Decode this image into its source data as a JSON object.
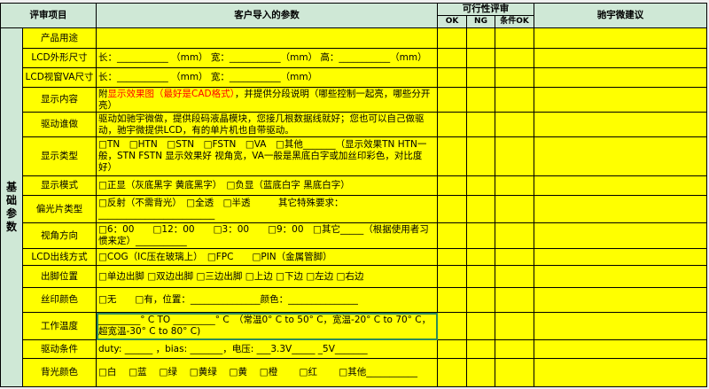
{
  "header": {
    "item": "评审项目",
    "params": "客户导入的参数",
    "feasibility": "可行性评审",
    "ok": "OK",
    "ng": "NG",
    "cond_ok": "条件OK",
    "suggestion": "驰宇微建议"
  },
  "group_label": "基础参数",
  "rows": [
    {
      "item": "产品用途",
      "param": ""
    },
    {
      "item": "LCD外形尺寸",
      "param": "长：___________ （mm） 宽：___________（mm） 高：___________（mm）"
    },
    {
      "item": "LCD视窗VA尺寸",
      "param": "长：___________ （mm） 宽：___________（mm）"
    },
    {
      "item": "显示内容",
      "param_prefix": "附",
      "param_red": "显示效果图（最好是CAD格式）",
      "param": "，并提供分段说明（哪些控制一起亮，哪些分开亮）"
    },
    {
      "item": "驱动谁做",
      "param": "驱动如驰宇微做，提供段码液晶模块，您接几根数据线就好；您也可以自己做驱动，驰宇微提供LCD，有的单片机也自带驱动。"
    },
    {
      "item": "显示类型",
      "param": "□TN　□HTN　□STN　□FSTN　□VA　□其他_______（显示效果TN HTN一般，STN FSTN 显示效果好 视角宽，VA一般是黑底白字或加丝印彩色，对比度好）"
    },
    {
      "item": "显示模式",
      "param": "□正显（灰底黑字 黄底黑字）　□负显（蓝底白字 黑底白字）"
    },
    {
      "item": "偏光片类型",
      "param": "□反射（不需背光）　□全透　□半透　　　其它特殊要求：_________________________"
    },
    {
      "item": "视角方向",
      "param": "□6：00　　□12：00　　□3：00　　□9：00　□其它_____（根据使用者习惯来定）___________"
    },
    {
      "item": "LCD出线方式",
      "param": "□COG（IC压在玻璃上）　□FPC　　□PIN（金属管脚）"
    },
    {
      "item": "出脚位置",
      "param": "□单边出脚 □双边出脚 □三边出脚 □上边 □下边 □左边 □右边"
    },
    {
      "item": "丝印颜色",
      "param": "□无　　□有，位置：_______________颜色：_______________"
    },
    {
      "item": "工作温度",
      "param": "_________° C TO _________° C　（常温0° C to 50° C，宽温-20° C to 70° C，超宽温-30° C to 80° C)"
    },
    {
      "item": "驱动条件",
      "param": "duty: ______ ，bias: _______，电压: ___3.3V_____ _5V_______"
    },
    {
      "item": "背光颜色",
      "param": "□白　 □蓝　 □绿　 □黄绿　 □黄　 □橙　　 □红　　 □其他___________"
    }
  ],
  "colors": {
    "cell": "#ffff00",
    "header": "#cfe8d6",
    "selection": "#2e8b57",
    "highlight_text": "#ff0000"
  }
}
